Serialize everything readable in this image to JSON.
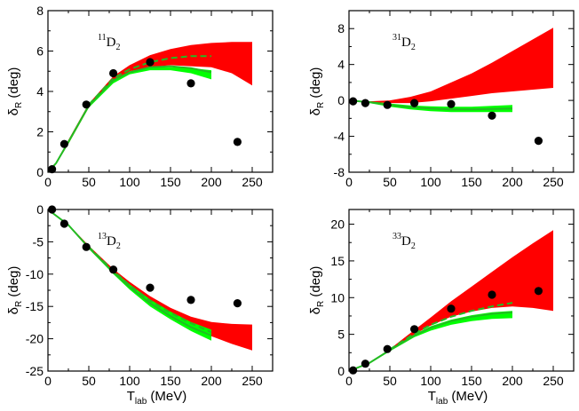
{
  "chart_data": [
    {
      "type": "line",
      "title": "11D2",
      "label": {
        "sup": "11",
        "main": "D",
        "sub": "2"
      },
      "xlabel": {
        "main": "T",
        "sub": "lab",
        "rest": " (MeV)"
      },
      "ylabel": {
        "main": "δ",
        "sub": "R",
        "rest": " (deg)"
      },
      "show_xlabel": false,
      "show_ylabel": true,
      "xlim": [
        0,
        275
      ],
      "ylim": [
        0,
        8
      ],
      "xticks": [
        0,
        50,
        100,
        150,
        200,
        250
      ],
      "yticks": [
        0,
        2,
        4,
        6,
        8
      ],
      "series": [
        {
          "name": "red band",
          "kind": "band",
          "color": "#ff0000",
          "x": [
            0,
            10,
            25,
            50,
            80,
            100,
            125,
            150,
            175,
            200,
            225,
            250
          ],
          "low": [
            0,
            0.4,
            1.4,
            3.2,
            4.5,
            5.0,
            5.2,
            5.3,
            5.25,
            5.2,
            4.9,
            4.3
          ],
          "high": [
            0,
            0.5,
            1.6,
            3.4,
            4.75,
            5.3,
            5.8,
            6.1,
            6.3,
            6.4,
            6.45,
            6.45
          ]
        },
        {
          "name": "green band",
          "kind": "band",
          "color": "#00ff00",
          "x": [
            0,
            10,
            25,
            50,
            80,
            100,
            125,
            150,
            175,
            200
          ],
          "low": [
            0,
            0.4,
            1.4,
            3.2,
            4.4,
            4.85,
            5.05,
            5.05,
            4.9,
            4.6
          ],
          "high": [
            0,
            0.5,
            1.55,
            3.35,
            4.6,
            5.0,
            5.2,
            5.2,
            5.15,
            5.05
          ]
        },
        {
          "name": "green solid",
          "kind": "line",
          "color": "#22bb22",
          "dash": false,
          "x": [
            0,
            10,
            25,
            50,
            80,
            100,
            125,
            150,
            175,
            200
          ],
          "y": [
            0,
            0.45,
            1.5,
            3.3,
            4.55,
            4.95,
            5.2,
            5.25,
            5.15,
            4.95
          ]
        },
        {
          "name": "green dashed",
          "kind": "line",
          "color": "#22bb22",
          "dash": true,
          "x": [
            50,
            80,
            100,
            125,
            150,
            175,
            200
          ],
          "y": [
            3.35,
            4.65,
            5.1,
            5.45,
            5.65,
            5.75,
            5.75
          ]
        },
        {
          "name": "data points",
          "kind": "points",
          "color": "#000000",
          "x": [
            5,
            20,
            47,
            80,
            125,
            175,
            232
          ],
          "y": [
            0.15,
            1.4,
            3.35,
            4.9,
            5.45,
            4.4,
            1.5
          ]
        }
      ]
    },
    {
      "type": "line",
      "title": "31D2",
      "label": {
        "sup": "31",
        "main": "D",
        "sub": "2"
      },
      "xlabel": {
        "main": "T",
        "sub": "lab",
        "rest": " (MeV)"
      },
      "ylabel": {
        "main": "δ",
        "sub": "R",
        "rest": " (deg)"
      },
      "show_xlabel": false,
      "show_ylabel": true,
      "xlim": [
        0,
        275
      ],
      "ylim": [
        -8,
        10
      ],
      "xticks": [
        0,
        50,
        100,
        150,
        200,
        250
      ],
      "yticks": [
        -8,
        -4,
        0,
        4,
        8
      ],
      "series": [
        {
          "name": "red band",
          "kind": "band",
          "color": "#ff0000",
          "x": [
            0,
            25,
            50,
            75,
            100,
            125,
            150,
            175,
            200,
            225,
            250
          ],
          "low": [
            0,
            -0.2,
            -0.3,
            -0.3,
            -0.1,
            0.2,
            0.5,
            0.8,
            1.0,
            1.2,
            1.4
          ],
          "high": [
            0,
            -0.1,
            0.0,
            0.4,
            1.0,
            2.0,
            3.0,
            4.2,
            5.5,
            6.8,
            8.1
          ]
        },
        {
          "name": "green band",
          "kind": "band",
          "color": "#00ff00",
          "x": [
            0,
            25,
            50,
            75,
            100,
            125,
            150,
            175,
            200
          ],
          "low": [
            0,
            -0.3,
            -0.7,
            -1.0,
            -1.2,
            -1.3,
            -1.3,
            -1.3,
            -1.3
          ],
          "high": [
            0,
            -0.1,
            -0.35,
            -0.55,
            -0.65,
            -0.7,
            -0.7,
            -0.6,
            -0.5
          ]
        },
        {
          "name": "green solid",
          "kind": "line",
          "color": "#22bb22",
          "dash": false,
          "x": [
            0,
            25,
            50,
            75,
            100,
            125,
            150,
            175,
            200
          ],
          "y": [
            0,
            -0.2,
            -0.5,
            -0.75,
            -0.9,
            -1.0,
            -1.0,
            -0.95,
            -0.9
          ]
        },
        {
          "name": "data points",
          "kind": "points",
          "color": "#000000",
          "x": [
            5,
            20,
            47,
            80,
            125,
            175,
            232
          ],
          "y": [
            -0.1,
            -0.3,
            -0.5,
            -0.3,
            -0.4,
            -1.7,
            -4.5
          ]
        }
      ]
    },
    {
      "type": "line",
      "title": "13D2",
      "label": {
        "sup": "13",
        "main": "D",
        "sub": "2"
      },
      "xlabel": {
        "main": "T",
        "sub": "lab",
        "rest": " (MeV)"
      },
      "ylabel": {
        "main": "δ",
        "sub": "R",
        "rest": " (deg)"
      },
      "show_xlabel": true,
      "show_ylabel": true,
      "xlim": [
        0,
        275
      ],
      "ylim": [
        -25,
        0
      ],
      "xticks": [
        0,
        50,
        100,
        150,
        200,
        250
      ],
      "yticks": [
        -25,
        -20,
        -15,
        -10,
        -5,
        0
      ],
      "series": [
        {
          "name": "red band",
          "kind": "band",
          "color": "#ff0000",
          "x": [
            0,
            25,
            50,
            80,
            100,
            125,
            150,
            175,
            200,
            225,
            250
          ],
          "low": [
            0,
            -2.5,
            -6.0,
            -9.8,
            -12.0,
            -14.4,
            -16.4,
            -18.2,
            -19.6,
            -20.8,
            -21.8
          ],
          "high": [
            0,
            -2.3,
            -5.6,
            -9.2,
            -11.2,
            -13.4,
            -15.2,
            -16.6,
            -17.4,
            -17.7,
            -17.8
          ]
        },
        {
          "name": "green band",
          "kind": "band",
          "color": "#00ff00",
          "x": [
            0,
            25,
            50,
            80,
            100,
            125,
            150,
            175,
            200
          ],
          "low": [
            0,
            -2.5,
            -6.1,
            -10.0,
            -12.4,
            -15.0,
            -17.0,
            -18.8,
            -20.3
          ],
          "high": [
            0,
            -2.3,
            -5.8,
            -9.5,
            -11.6,
            -13.9,
            -15.8,
            -17.4,
            -18.6
          ]
        },
        {
          "name": "green solid",
          "kind": "line",
          "color": "#22bb22",
          "dash": false,
          "x": [
            0,
            25,
            50,
            80,
            100,
            125,
            150,
            175,
            200
          ],
          "y": [
            0,
            -2.4,
            -5.9,
            -9.7,
            -12.0,
            -14.5,
            -16.5,
            -18.2,
            -19.5
          ]
        },
        {
          "name": "green dashed",
          "kind": "line",
          "color": "#22bb22",
          "dash": true,
          "x": [
            50,
            80,
            100,
            125,
            150,
            175,
            200
          ],
          "y": [
            -5.8,
            -9.5,
            -11.7,
            -14.1,
            -16.0,
            -17.6,
            -19.0
          ]
        },
        {
          "name": "data points",
          "kind": "points",
          "color": "#000000",
          "x": [
            5,
            20,
            47,
            80,
            125,
            175,
            232
          ],
          "y": [
            0.0,
            -2.2,
            -5.8,
            -9.3,
            -12.1,
            -14.0,
            -14.5
          ]
        }
      ]
    },
    {
      "type": "line",
      "title": "33D2",
      "label": {
        "sup": "33",
        "main": "D",
        "sub": "2"
      },
      "xlabel": {
        "main": "T",
        "sub": "lab",
        "rest": " (MeV)"
      },
      "ylabel": {
        "main": "δ",
        "sub": "R",
        "rest": " (deg)"
      },
      "show_xlabel": true,
      "show_ylabel": true,
      "xlim": [
        0,
        275
      ],
      "ylim": [
        0,
        22
      ],
      "xticks": [
        0,
        50,
        100,
        150,
        200,
        250
      ],
      "yticks": [
        0,
        5,
        10,
        15,
        20
      ],
      "series": [
        {
          "name": "red band",
          "kind": "band",
          "color": "#ff0000",
          "x": [
            0,
            25,
            50,
            80,
            100,
            125,
            150,
            175,
            200,
            225,
            250
          ],
          "low": [
            0,
            1.1,
            2.8,
            5.0,
            6.2,
            7.4,
            8.1,
            8.6,
            8.8,
            8.6,
            8.2
          ],
          "high": [
            0,
            1.2,
            3.0,
            5.6,
            7.3,
            9.5,
            11.5,
            13.5,
            15.5,
            17.4,
            19.2
          ]
        },
        {
          "name": "green band",
          "kind": "band",
          "color": "#00ff00",
          "x": [
            0,
            25,
            50,
            80,
            100,
            125,
            150,
            175,
            200
          ],
          "low": [
            0,
            1.0,
            2.7,
            4.6,
            5.5,
            6.3,
            6.8,
            7.1,
            7.2
          ],
          "high": [
            0,
            1.15,
            2.95,
            5.0,
            6.1,
            7.0,
            7.6,
            8.0,
            8.2
          ]
        },
        {
          "name": "green solid",
          "kind": "line",
          "color": "#22bb22",
          "dash": false,
          "x": [
            0,
            25,
            50,
            80,
            100,
            125,
            150,
            175,
            200
          ],
          "y": [
            0,
            1.1,
            2.85,
            4.85,
            5.9,
            6.8,
            7.4,
            7.8,
            8.0
          ]
        },
        {
          "name": "green dashed",
          "kind": "line",
          "color": "#22bb22",
          "dash": true,
          "x": [
            50,
            80,
            100,
            125,
            150,
            175,
            200
          ],
          "y": [
            2.95,
            5.1,
            6.3,
            7.4,
            8.2,
            8.8,
            9.3
          ]
        },
        {
          "name": "data points",
          "kind": "points",
          "color": "#000000",
          "x": [
            5,
            20,
            47,
            80,
            125,
            175,
            232
          ],
          "y": [
            0.1,
            1.0,
            3.0,
            5.7,
            8.5,
            10.4,
            10.9
          ]
        }
      ]
    }
  ]
}
